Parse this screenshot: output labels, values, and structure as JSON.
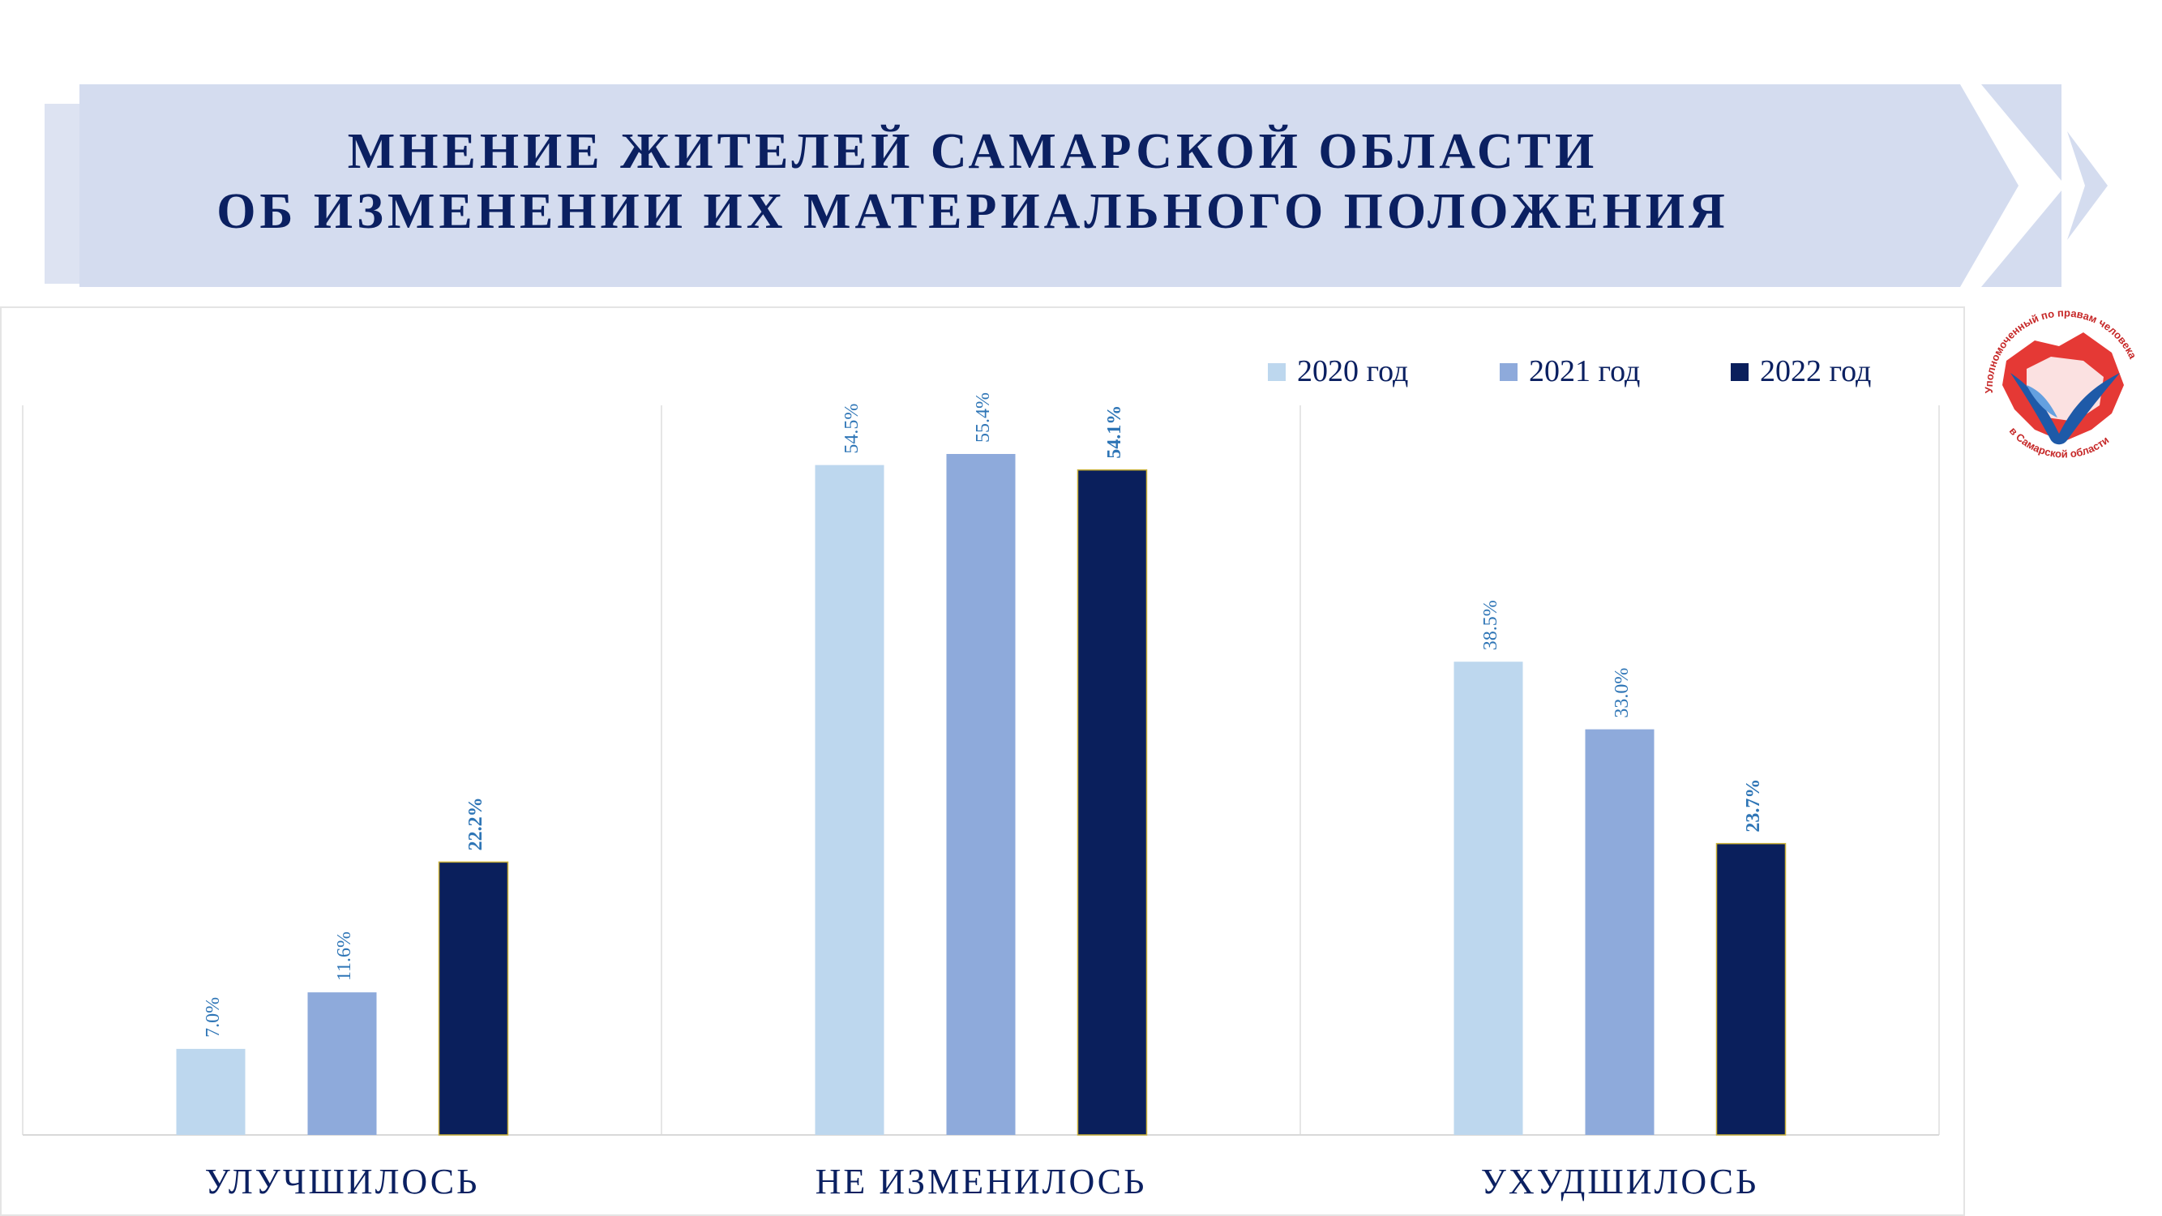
{
  "title": {
    "line1": "МНЕНИЕ ЖИТЕЛЕЙ САМАРСКОЙ ОБЛАСТИ",
    "line2": "ОБ ИЗМЕНЕНИИ ИХ МАТЕРИАЛЬНОГО ПОЛОЖЕНИЯ"
  },
  "logo": {
    "text_top": "Уполномоченный по правам человека",
    "text_bottom": "в Самарской области"
  },
  "colors": {
    "banner": "#d4dcef",
    "title": "#0b2061",
    "s2020": "#bdd7ee",
    "s2021": "#8eaadb",
    "s2022": "#0a1f5c",
    "label": "#2e75b6",
    "category": "#0b2061",
    "grid": "#e6e6e6"
  },
  "chart_data": {
    "type": "bar",
    "categories": [
      "УЛУЧШИЛОСЬ",
      "НЕ ИЗМЕНИЛОСЬ",
      "УХУДШИЛОСЬ"
    ],
    "series": [
      {
        "name": "2020 год",
        "values": [
          7.0,
          54.5,
          38.5
        ],
        "labels": [
          "7.0%",
          "54.5%",
          "38.5%"
        ]
      },
      {
        "name": "2021 год",
        "values": [
          11.6,
          55.4,
          33.0
        ],
        "labels": [
          "11.6%",
          "55.4%",
          "33.0%"
        ]
      },
      {
        "name": "2022 год",
        "values": [
          22.2,
          54.1,
          23.7
        ],
        "labels": [
          "22.2%",
          "54.1%",
          "23.7%"
        ]
      }
    ],
    "ylim": [
      0,
      60
    ],
    "legend": "top-right",
    "grid": false
  }
}
